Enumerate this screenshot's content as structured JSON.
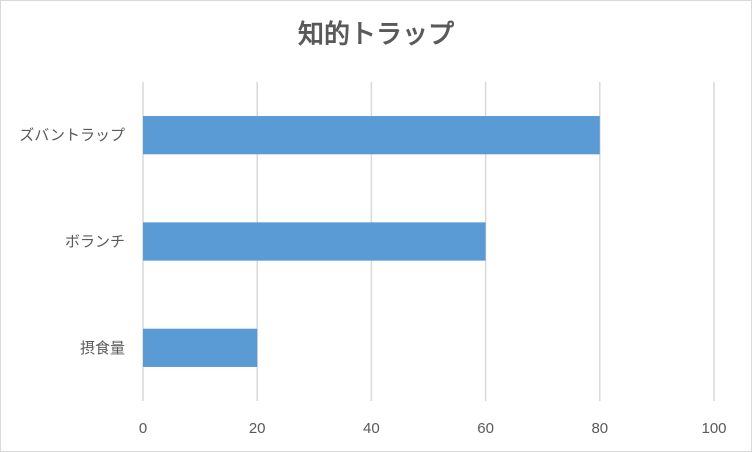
{
  "chart_data": {
    "type": "bar",
    "orientation": "horizontal",
    "title": "知的トラップ",
    "categories": [
      "ズバントラップ",
      "ボランチ",
      "摂食量"
    ],
    "values": [
      80,
      60,
      20
    ],
    "xlim": [
      0,
      100
    ],
    "x_ticks": [
      "0",
      "20",
      "40",
      "60",
      "80",
      "100"
    ],
    "xlabel": "",
    "ylabel": "",
    "grid": "vertical",
    "legend": "none",
    "bar_color": "#5b9bd5",
    "grid_color": "#d9d9d9"
  }
}
